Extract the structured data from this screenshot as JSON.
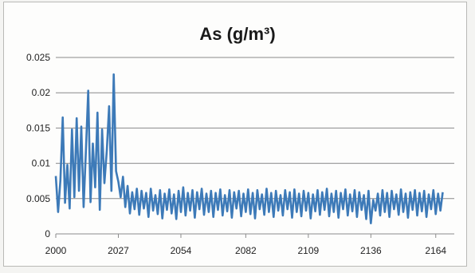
{
  "chart_data": {
    "type": "line",
    "title": "As (g/m³)",
    "xlabel": "",
    "ylabel": "",
    "xlim": [
      2000,
      2172
    ],
    "ylim": [
      0,
      0.025
    ],
    "x_ticks": [
      "2000",
      "2027",
      "2054",
      "2082",
      "2109",
      "2136",
      "2164"
    ],
    "y_ticks": [
      "0",
      "0.005",
      "0.01",
      "0.015",
      "0.02",
      "0.025"
    ],
    "grid": true,
    "legend": "none",
    "series_color": "#3d7ab8",
    "series": [
      {
        "x": [
          2000,
          2001,
          2002,
          2003,
          2004,
          2005,
          2006,
          2007,
          2008,
          2009,
          2010,
          2011,
          2012,
          2013,
          2014,
          2015,
          2016,
          2017,
          2018,
          2019,
          2020,
          2021,
          2022,
          2023,
          2024,
          2025,
          2026,
          2027,
          2028,
          2029,
          2030,
          2031,
          2032,
          2033,
          2034,
          2035,
          2036,
          2037,
          2038,
          2039,
          2040,
          2041,
          2042,
          2043,
          2044,
          2045,
          2046,
          2047,
          2048,
          2049,
          2050,
          2051,
          2052,
          2053,
          2054,
          2055,
          2056,
          2057,
          2058,
          2059,
          2060,
          2061,
          2062,
          2063,
          2064,
          2065,
          2066,
          2067,
          2068,
          2069,
          2070,
          2071,
          2072,
          2073,
          2074,
          2075,
          2076,
          2077,
          2078,
          2079,
          2080,
          2081,
          2082,
          2083,
          2084,
          2085,
          2086,
          2087,
          2088,
          2089,
          2090,
          2091,
          2092,
          2093,
          2094,
          2095,
          2096,
          2097,
          2098,
          2099,
          2100,
          2101,
          2102,
          2103,
          2104,
          2105,
          2106,
          2107,
          2108,
          2109,
          2110,
          2111,
          2112,
          2113,
          2114,
          2115,
          2116,
          2117,
          2118,
          2119,
          2120,
          2121,
          2122,
          2123,
          2124,
          2125,
          2126,
          2127,
          2128,
          2129,
          2130,
          2131,
          2132,
          2133,
          2134,
          2135,
          2136,
          2137,
          2138,
          2139,
          2140,
          2141,
          2142,
          2143,
          2144,
          2145,
          2146,
          2147,
          2148,
          2149,
          2150,
          2151,
          2152,
          2153,
          2154,
          2155,
          2156,
          2157,
          2158,
          2159,
          2160,
          2161,
          2162,
          2163,
          2164,
          2165,
          2166,
          2167
        ],
        "values": [
          0.0082,
          0.0031,
          0.0076,
          0.0165,
          0.0044,
          0.0098,
          0.0036,
          0.0148,
          0.0052,
          0.0164,
          0.0061,
          0.0152,
          0.0038,
          0.0118,
          0.0203,
          0.0045,
          0.0128,
          0.0066,
          0.0172,
          0.0034,
          0.0148,
          0.0072,
          0.0118,
          0.0181,
          0.0061,
          0.0226,
          0.0089,
          0.0074,
          0.0052,
          0.0081,
          0.0038,
          0.0068,
          0.0029,
          0.0059,
          0.0035,
          0.0064,
          0.0027,
          0.0061,
          0.0036,
          0.0058,
          0.0024,
          0.0064,
          0.0033,
          0.0055,
          0.0028,
          0.0062,
          0.0022,
          0.0057,
          0.0034,
          0.0063,
          0.0029,
          0.0056,
          0.0021,
          0.0061,
          0.0031,
          0.0066,
          0.0026,
          0.0058,
          0.0033,
          0.0062,
          0.0023,
          0.0059,
          0.0035,
          0.0064,
          0.0027,
          0.0057,
          0.0031,
          0.0061,
          0.0024,
          0.0058,
          0.0034,
          0.0063,
          0.0026,
          0.0055,
          0.0032,
          0.0062,
          0.0023,
          0.0059,
          0.0036,
          0.0061,
          0.0025,
          0.0057,
          0.0031,
          0.0063,
          0.0028,
          0.0058,
          0.0022,
          0.0062,
          0.0035,
          0.0056,
          0.0027,
          0.0064,
          0.0031,
          0.0058,
          0.0024,
          0.0061,
          0.0033,
          0.0055,
          0.0026,
          0.0062,
          0.0035,
          0.0059,
          0.0023,
          0.0063,
          0.0031,
          0.0057,
          0.0025,
          0.0061,
          0.0033,
          0.0058,
          0.0022,
          0.0056,
          0.0032,
          0.0062,
          0.0027,
          0.0059,
          0.0034,
          0.0064,
          0.0025,
          0.0057,
          0.0031,
          0.0061,
          0.0023,
          0.0058,
          0.0035,
          0.0063,
          0.0026,
          0.0056,
          0.0032,
          0.0062,
          0.0024,
          0.0059,
          0.0034,
          0.0055,
          0.0021,
          0.0061,
          0.0015,
          0.0048,
          0.0033,
          0.0057,
          0.0026,
          0.0062,
          0.0031,
          0.0058,
          0.0024,
          0.0061,
          0.0035,
          0.0056,
          0.0027,
          0.0063,
          0.0031,
          0.0057,
          0.0023,
          0.0059,
          0.0034,
          0.0062,
          0.0026,
          0.0058,
          0.0032,
          0.0061,
          0.0024,
          0.0056,
          0.0035,
          0.0062,
          0.0028,
          0.0057,
          0.0033,
          0.0059
        ]
      }
    ]
  }
}
